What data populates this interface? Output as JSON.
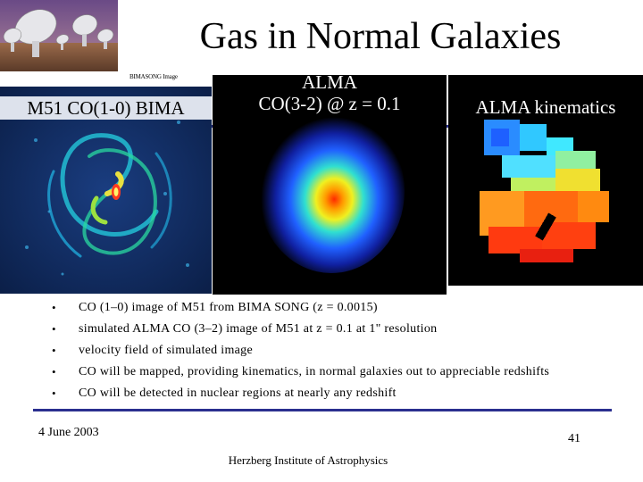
{
  "title": "Gas in Normal Galaxies",
  "photo_credit": "BIMASONG Image",
  "panels": {
    "bima": {
      "label": "M51 CO(1-0) BIMA"
    },
    "co32": {
      "label_line1": "ALMA",
      "label_line2": "CO(3-2) @ z = 0.1"
    },
    "kinematics": {
      "label": "ALMA kinematics"
    }
  },
  "bullets": [
    "CO (1–0) image of M51 from BIMA SONG (z = 0.0015)",
    "simulated ALMA CO (3–2) image of M51 at z = 0.1 at 1\" resolution",
    "velocity field of simulated image",
    "CO will be mapped, providing kinematics, in normal galaxies out to appreciable redshifts",
    "CO will be detected in nuclear regions at nearly any redshift"
  ],
  "bullet_marker": "•",
  "footer": {
    "date": "4 June 2003",
    "page": "41",
    "institute": "Herzberg Institute of Astrophysics"
  },
  "colors": {
    "rule": "#2a2f8f",
    "bima_background": "#0e2552",
    "panel_background": "#000000"
  }
}
